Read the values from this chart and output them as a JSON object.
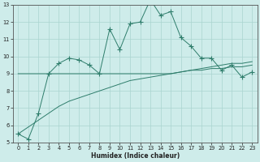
{
  "xlabel": "Humidex (Indice chaleur)",
  "x_values": [
    0,
    1,
    2,
    3,
    4,
    5,
    6,
    7,
    8,
    9,
    10,
    11,
    12,
    13,
    14,
    15,
    16,
    17,
    18,
    19,
    20,
    21,
    22,
    23
  ],
  "line1_y": [
    5.5,
    5.2,
    6.7,
    9.0,
    9.6,
    9.9,
    9.8,
    9.5,
    9.0,
    11.6,
    10.4,
    11.9,
    12.0,
    13.3,
    12.4,
    12.6,
    11.1,
    10.6,
    9.9,
    9.9,
    9.2,
    9.5,
    8.8,
    9.1
  ],
  "line2_y": [
    9.0,
    9.0,
    9.0,
    9.0,
    9.0,
    9.0,
    9.0,
    9.0,
    9.0,
    9.0,
    9.0,
    9.0,
    9.0,
    9.0,
    9.0,
    9.0,
    9.1,
    9.2,
    9.3,
    9.4,
    9.5,
    9.6,
    9.6,
    9.7
  ],
  "line3_y": [
    5.5,
    5.9,
    6.3,
    6.7,
    7.1,
    7.4,
    7.6,
    7.8,
    8.0,
    8.2,
    8.4,
    8.6,
    8.7,
    8.8,
    8.9,
    9.0,
    9.1,
    9.2,
    9.2,
    9.3,
    9.3,
    9.4,
    9.4,
    9.5
  ],
  "ylim_min": 5,
  "ylim_max": 13,
  "xlim_min": 0,
  "xlim_max": 23,
  "yticks": [
    5,
    6,
    7,
    8,
    9,
    10,
    11,
    12,
    13
  ],
  "xticks": [
    0,
    1,
    2,
    3,
    4,
    5,
    6,
    7,
    8,
    9,
    10,
    11,
    12,
    13,
    14,
    15,
    16,
    17,
    18,
    19,
    20,
    21,
    22,
    23
  ],
  "line_color": "#2e7d6b",
  "bg_color": "#ceecea",
  "grid_color": "#aad4d0",
  "marker": "+",
  "marker_size": 4,
  "linewidth": 0.7,
  "xlabel_fontsize": 5.5,
  "tick_fontsize": 4.8
}
